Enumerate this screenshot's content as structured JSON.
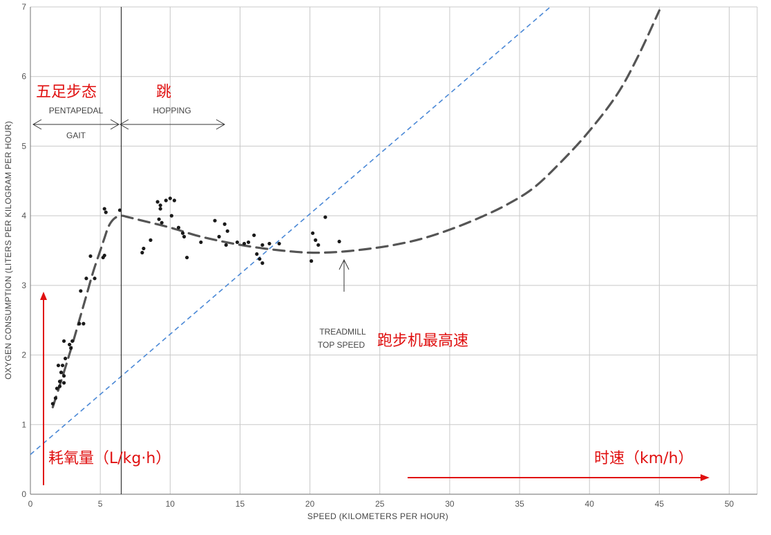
{
  "chart_data": {
    "type": "scatter",
    "xlabel": "SPEED (KILOMETERS PER HOUR)",
    "ylabel": "OXYGEN CONSUMPTION (LITERS PER KILOGRAM PER HOUR)",
    "xlim": [
      0,
      52
    ],
    "ylim": [
      0,
      7
    ],
    "xticks": [
      0,
      5,
      10,
      15,
      20,
      25,
      30,
      35,
      40,
      45,
      50
    ],
    "yticks": [
      0,
      1,
      2,
      3,
      4,
      5,
      6,
      7
    ],
    "grid": true,
    "series": [
      {
        "kind": "points",
        "values": [
          [
            1.6,
            1.3
          ],
          [
            1.8,
            1.38
          ],
          [
            1.9,
            1.52
          ],
          [
            2.0,
            1.85
          ],
          [
            2.1,
            1.55
          ],
          [
            2.1,
            1.62
          ],
          [
            2.2,
            1.75
          ],
          [
            2.3,
            1.85
          ],
          [
            2.4,
            1.6
          ],
          [
            2.4,
            1.7
          ],
          [
            2.5,
            1.95
          ],
          [
            2.4,
            2.2
          ],
          [
            2.8,
            2.15
          ],
          [
            2.9,
            2.1
          ],
          [
            3.0,
            2.2
          ],
          [
            3.5,
            2.45
          ],
          [
            3.6,
            2.92
          ],
          [
            3.8,
            2.45
          ],
          [
            4.0,
            3.1
          ],
          [
            4.3,
            3.42
          ],
          [
            4.6,
            3.1
          ],
          [
            5.2,
            3.4
          ],
          [
            5.3,
            3.43
          ],
          [
            5.3,
            4.1
          ],
          [
            5.4,
            4.05
          ],
          [
            6.4,
            4.08
          ],
          [
            8.0,
            3.47
          ],
          [
            8.1,
            3.53
          ],
          [
            8.6,
            3.65
          ],
          [
            9.1,
            4.2
          ],
          [
            9.2,
            3.95
          ],
          [
            9.3,
            4.15
          ],
          [
            9.3,
            4.1
          ],
          [
            9.4,
            3.9
          ],
          [
            9.7,
            4.22
          ],
          [
            10.0,
            4.25
          ],
          [
            10.1,
            4.0
          ],
          [
            10.3,
            4.22
          ],
          [
            10.6,
            3.83
          ],
          [
            10.9,
            3.75
          ],
          [
            11.0,
            3.7
          ],
          [
            11.2,
            3.4
          ],
          [
            12.2,
            3.62
          ],
          [
            13.2,
            3.93
          ],
          [
            13.5,
            3.7
          ],
          [
            13.9,
            3.88
          ],
          [
            14.1,
            3.78
          ],
          [
            14.0,
            3.58
          ],
          [
            14.8,
            3.62
          ],
          [
            15.3,
            3.6
          ],
          [
            15.6,
            3.62
          ],
          [
            16.0,
            3.72
          ],
          [
            16.2,
            3.45
          ],
          [
            16.4,
            3.38
          ],
          [
            16.6,
            3.32
          ],
          [
            16.6,
            3.58
          ],
          [
            17.1,
            3.6
          ],
          [
            17.8,
            3.6
          ],
          [
            20.1,
            3.35
          ],
          [
            20.2,
            3.75
          ],
          [
            20.4,
            3.65
          ],
          [
            20.6,
            3.58
          ],
          [
            21.1,
            3.98
          ],
          [
            22.1,
            3.63
          ]
        ]
      },
      {
        "kind": "dashed-curve",
        "values": [
          [
            1.6,
            1.25
          ],
          [
            2.0,
            1.5
          ],
          [
            2.5,
            1.82
          ],
          [
            3.0,
            2.15
          ],
          [
            3.5,
            2.5
          ],
          [
            4.0,
            2.85
          ],
          [
            4.5,
            3.2
          ],
          [
            5.0,
            3.5
          ],
          [
            5.3,
            3.68
          ],
          [
            5.6,
            3.85
          ],
          [
            6.0,
            3.96
          ],
          [
            6.5,
            4.0
          ],
          [
            7.0,
            3.98
          ],
          [
            8.0,
            3.93
          ],
          [
            10.0,
            3.83
          ],
          [
            12.0,
            3.71
          ],
          [
            14.0,
            3.62
          ],
          [
            16.0,
            3.55
          ],
          [
            18.0,
            3.5
          ],
          [
            20.0,
            3.47
          ],
          [
            22.0,
            3.48
          ],
          [
            24.0,
            3.52
          ],
          [
            26.0,
            3.58
          ],
          [
            28.0,
            3.67
          ],
          [
            30.0,
            3.8
          ],
          [
            32.0,
            3.96
          ],
          [
            34.0,
            4.15
          ],
          [
            36.0,
            4.4
          ],
          [
            38.0,
            4.78
          ],
          [
            40.0,
            5.22
          ],
          [
            42.0,
            5.75
          ],
          [
            43.5,
            6.3
          ],
          [
            45.0,
            6.95
          ]
        ]
      },
      {
        "kind": "blue-dashed-line",
        "values": [
          [
            0,
            0.57
          ],
          [
            37.2,
            7.0
          ]
        ]
      }
    ],
    "annotations": {
      "pentapedal": "PENTAPEDAL",
      "gait": "GAIT",
      "hopping": "HOPPING",
      "treadmill_line1": "TREADMILL",
      "treadmill_line2": "TOP SPEED",
      "cn_pentapedal": "五足步态",
      "cn_hopping": "跳",
      "cn_treadmill": "跑步机最高速",
      "cn_ylabel": "耗氧量（L/kg·h）",
      "cn_xlabel": "时速（km/h）"
    }
  },
  "colors": {
    "points": "#1a1a1a",
    "curve": "#555555",
    "blue_line": "#4a88d6",
    "grid": "#c8c8c8",
    "red": "#e01010"
  }
}
